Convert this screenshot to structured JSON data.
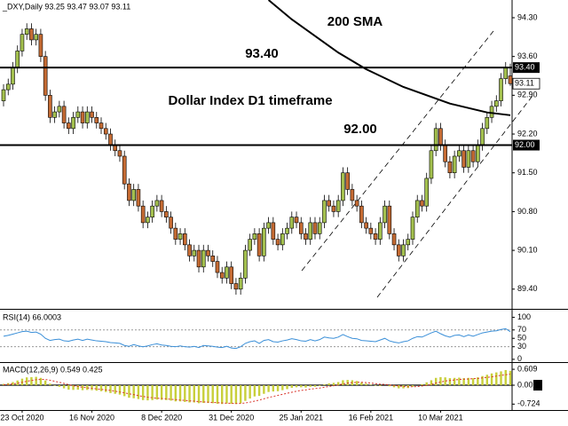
{
  "chart_data": [
    {
      "type": "candlestick",
      "title": "_DXY,Daily  93.25 93.47 93.07 93.11",
      "categories": [
        null,
        null,
        null,
        null,
        "23 Oct 2020",
        null,
        null,
        null,
        null,
        null,
        null,
        null,
        null,
        null,
        null,
        null,
        null,
        null,
        null,
        "16 Nov 2020",
        null,
        null,
        null,
        null,
        null,
        null,
        null,
        null,
        null,
        null,
        null,
        null,
        null,
        null,
        "8 Dec 2020",
        null,
        null,
        null,
        null,
        null,
        null,
        null,
        null,
        null,
        null,
        null,
        null,
        null,
        null,
        "31 Dec 2020",
        null,
        null,
        null,
        null,
        null,
        null,
        null,
        null,
        null,
        null,
        null,
        null,
        null,
        null,
        "25 Jan 2021",
        null,
        null,
        null,
        null,
        null,
        null,
        null,
        null,
        null,
        null,
        null,
        null,
        null,
        null,
        "16 Feb 2021",
        null,
        null,
        null,
        null,
        null,
        null,
        null,
        null,
        null,
        null,
        null,
        null,
        null,
        null,
        "10 Mar 2021",
        null,
        null,
        null,
        null,
        null,
        null,
        null,
        null,
        null,
        null,
        null,
        null,
        null,
        null,
        null
      ],
      "open": [
        92.8,
        93.0,
        93.1,
        93.4,
        93.7,
        94.0,
        94.1,
        93.9,
        94.0,
        93.6,
        92.9,
        92.5,
        92.6,
        92.7,
        92.4,
        92.3,
        92.5,
        92.6,
        92.4,
        92.6,
        92.5,
        92.4,
        92.3,
        92.2,
        92.0,
        91.9,
        91.8,
        91.3,
        91.0,
        91.2,
        90.9,
        90.6,
        90.7,
        90.9,
        91.0,
        90.8,
        90.7,
        90.5,
        90.3,
        90.4,
        90.2,
        90.0,
        90.1,
        89.8,
        90.1,
        90.0,
        89.9,
        89.7,
        89.6,
        89.8,
        89.5,
        89.4,
        89.6,
        90.1,
        90.3,
        90.4,
        90.0,
        90.5,
        90.6,
        90.3,
        90.2,
        90.4,
        90.5,
        90.7,
        90.6,
        90.4,
        90.3,
        90.6,
        90.4,
        90.6,
        91.0,
        90.9,
        90.8,
        91.0,
        91.5,
        91.2,
        91.0,
        90.9,
        90.6,
        90.5,
        90.4,
        90.3,
        90.6,
        90.9,
        90.4,
        90.2,
        90.0,
        90.2,
        90.3,
        90.7,
        91.0,
        90.9,
        91.4,
        91.9,
        92.3,
        92.0,
        91.7,
        91.5,
        91.8,
        91.9,
        91.6,
        91.9,
        91.7,
        92.0,
        92.3,
        92.5,
        92.7,
        92.8,
        93.2,
        93.25
      ],
      "high": [
        93.1,
        93.2,
        93.5,
        93.8,
        94.1,
        94.2,
        94.2,
        94.1,
        94.1,
        93.7,
        93.0,
        92.7,
        92.8,
        92.8,
        92.5,
        92.6,
        92.7,
        92.7,
        92.7,
        92.7,
        92.6,
        92.5,
        92.4,
        92.3,
        92.1,
        92.0,
        91.9,
        91.4,
        91.3,
        91.3,
        91.0,
        90.8,
        91.0,
        91.1,
        91.1,
        90.9,
        90.8,
        90.6,
        90.5,
        90.5,
        90.3,
        90.2,
        90.2,
        90.2,
        90.2,
        90.1,
        90.0,
        89.8,
        89.9,
        89.9,
        89.6,
        89.7,
        90.2,
        90.4,
        90.5,
        90.5,
        90.6,
        90.7,
        90.7,
        90.4,
        90.5,
        90.6,
        90.8,
        90.8,
        90.7,
        90.5,
        90.7,
        90.7,
        90.7,
        91.1,
        91.1,
        91.0,
        91.1,
        91.6,
        91.6,
        91.3,
        91.1,
        91.0,
        90.7,
        90.6,
        90.5,
        90.7,
        91.0,
        91.0,
        90.5,
        90.3,
        90.3,
        90.4,
        90.8,
        91.1,
        91.1,
        91.5,
        92.0,
        92.4,
        92.4,
        92.1,
        91.8,
        91.9,
        92.0,
        92.0,
        92.0,
        92.0,
        92.1,
        92.4,
        92.6,
        92.8,
        92.9,
        93.3,
        93.5,
        93.47
      ],
      "low": [
        92.7,
        92.9,
        93.0,
        93.3,
        93.6,
        93.9,
        93.8,
        93.8,
        93.5,
        92.8,
        92.4,
        92.4,
        92.5,
        92.3,
        92.2,
        92.2,
        92.4,
        92.3,
        92.3,
        92.4,
        92.3,
        92.2,
        92.1,
        91.9,
        91.8,
        91.7,
        91.2,
        90.9,
        90.9,
        90.8,
        90.5,
        90.5,
        90.6,
        90.8,
        90.7,
        90.6,
        90.4,
        90.2,
        90.2,
        90.1,
        89.9,
        89.9,
        89.7,
        89.7,
        89.9,
        89.8,
        89.6,
        89.5,
        89.5,
        89.4,
        89.3,
        89.3,
        89.5,
        90.0,
        90.2,
        89.9,
        89.9,
        90.4,
        90.2,
        90.1,
        90.1,
        90.3,
        90.4,
        90.5,
        90.3,
        90.2,
        90.2,
        90.3,
        90.3,
        90.5,
        90.8,
        90.7,
        90.7,
        90.9,
        91.1,
        90.9,
        90.8,
        90.5,
        90.4,
        90.3,
        90.2,
        90.2,
        90.5,
        90.3,
        90.1,
        89.9,
        89.9,
        90.1,
        90.2,
        90.6,
        90.8,
        90.8,
        91.3,
        91.8,
        91.9,
        91.6,
        91.4,
        91.4,
        91.7,
        91.5,
        91.5,
        91.6,
        91.6,
        91.9,
        92.2,
        92.4,
        92.6,
        92.7,
        93.1,
        93.07
      ],
      "close": [
        93.0,
        93.1,
        93.4,
        93.7,
        94.0,
        94.1,
        93.9,
        94.0,
        93.6,
        92.9,
        92.5,
        92.6,
        92.7,
        92.4,
        92.3,
        92.5,
        92.6,
        92.4,
        92.6,
        92.5,
        92.4,
        92.3,
        92.2,
        92.0,
        91.9,
        91.8,
        91.3,
        91.0,
        91.2,
        90.9,
        90.6,
        90.7,
        90.9,
        91.0,
        90.8,
        90.7,
        90.5,
        90.3,
        90.4,
        90.2,
        90.0,
        90.1,
        89.8,
        90.1,
        90.0,
        89.9,
        89.7,
        89.6,
        89.8,
        89.5,
        89.4,
        89.6,
        90.1,
        90.3,
        90.4,
        90.0,
        90.5,
        90.6,
        90.3,
        90.2,
        90.4,
        90.5,
        90.7,
        90.6,
        90.4,
        90.3,
        90.6,
        90.4,
        90.6,
        91.0,
        90.9,
        90.8,
        91.0,
        91.5,
        91.2,
        91.0,
        90.9,
        90.6,
        90.5,
        90.4,
        90.3,
        90.6,
        90.9,
        90.4,
        90.2,
        90.0,
        90.2,
        90.3,
        90.7,
        91.0,
        90.9,
        91.4,
        91.9,
        92.3,
        92.0,
        91.7,
        91.5,
        91.8,
        91.9,
        91.6,
        91.9,
        91.7,
        92.0,
        92.3,
        92.5,
        92.7,
        92.8,
        93.2,
        93.4,
        93.11
      ],
      "up_color": "#a3c04e",
      "down_color": "#c56b33",
      "ylim": [
        89.06,
        94.62
      ],
      "yticks": [
        {
          "value": 89.4,
          "label": "89.40"
        },
        {
          "value": 90.1,
          "label": "90.10"
        },
        {
          "value": 90.8,
          "label": "90.80"
        },
        {
          "value": 91.5,
          "label": "91.50"
        },
        {
          "value": 92.2,
          "label": "92.20"
        },
        {
          "value": 92.9,
          "label": "92.90"
        },
        {
          "value": 93.6,
          "label": "93.60"
        },
        {
          "value": 94.3,
          "label": "94.30"
        }
      ],
      "sma": {
        "name": "200 SMA",
        "color": "#000000",
        "values": [
          null,
          null,
          null,
          null,
          null,
          null,
          null,
          null,
          null,
          null,
          null,
          null,
          null,
          null,
          null,
          null,
          null,
          null,
          null,
          null,
          null,
          null,
          null,
          null,
          null,
          null,
          null,
          null,
          null,
          null,
          null,
          null,
          null,
          null,
          null,
          null,
          null,
          null,
          null,
          null,
          null,
          null,
          null,
          null,
          null,
          null,
          null,
          null,
          null,
          null,
          null,
          null,
          null,
          null,
          null,
          null,
          null,
          94.62,
          94.55,
          94.48,
          94.41,
          94.34,
          94.27,
          94.21,
          94.15,
          94.09,
          94.03,
          93.97,
          93.91,
          93.85,
          93.79,
          93.73,
          93.67,
          93.62,
          93.57,
          93.52,
          93.47,
          93.42,
          93.37,
          93.33,
          93.29,
          93.25,
          93.21,
          93.17,
          93.13,
          93.09,
          93.05,
          93.02,
          92.99,
          92.96,
          92.93,
          92.9,
          92.87,
          92.84,
          92.81,
          92.78,
          92.75,
          92.73,
          92.71,
          92.69,
          92.67,
          92.65,
          92.63,
          92.61,
          92.59,
          92.58,
          92.57,
          92.56,
          92.55,
          92.54
        ]
      },
      "levels": [
        {
          "value": 93.4,
          "label": "93.40"
        },
        {
          "value": 92.0,
          "label": "92.00"
        }
      ],
      "annotation": "Dollar Index D1 timeframe"
    },
    {
      "type": "line",
      "title": "RSI(14) 66.0003",
      "color": "#3a8fd8",
      "values": [
        55,
        57,
        60,
        63,
        66,
        67,
        64,
        65,
        60,
        50,
        45,
        47,
        48,
        44,
        43,
        46,
        48,
        45,
        48,
        46,
        44,
        43,
        42,
        40,
        39,
        38,
        33,
        31,
        35,
        32,
        30,
        32,
        35,
        37,
        34,
        33,
        31,
        30,
        32,
        30,
        29,
        31,
        28,
        33,
        32,
        31,
        29,
        28,
        31,
        27,
        26,
        30,
        38,
        42,
        44,
        38,
        45,
        47,
        42,
        41,
        44,
        46,
        49,
        47,
        44,
        43,
        47,
        44,
        47,
        53,
        51,
        50,
        53,
        59,
        54,
        50,
        49,
        45,
        44,
        43,
        42,
        46,
        50,
        44,
        41,
        39,
        42,
        44,
        50,
        54,
        53,
        58,
        63,
        67,
        61,
        56,
        53,
        57,
        58,
        54,
        58,
        55,
        59,
        63,
        65,
        67,
        68,
        71,
        73,
        66.0003
      ],
      "ylim": [
        -4.5,
        116
      ],
      "yticks": [
        0,
        30,
        50,
        70,
        100
      ],
      "guides": [
        30,
        70
      ]
    },
    {
      "type": "bar",
      "title": "MACD(12,26,9) 0.549 0.425",
      "color": "#c8cf3a",
      "values": [
        0.05,
        0.08,
        0.12,
        0.18,
        0.25,
        0.3,
        0.31,
        0.32,
        0.28,
        0.18,
        0.06,
        -0.02,
        -0.06,
        -0.12,
        -0.17,
        -0.18,
        -0.17,
        -0.19,
        -0.18,
        -0.19,
        -0.21,
        -0.23,
        -0.26,
        -0.3,
        -0.33,
        -0.36,
        -0.42,
        -0.48,
        -0.5,
        -0.53,
        -0.57,
        -0.58,
        -0.57,
        -0.55,
        -0.56,
        -0.57,
        -0.59,
        -0.62,
        -0.62,
        -0.64,
        -0.66,
        -0.66,
        -0.69,
        -0.68,
        -0.68,
        -0.69,
        -0.71,
        -0.72,
        -0.7,
        -0.71,
        -0.72,
        -0.69,
        -0.6,
        -0.51,
        -0.43,
        -0.41,
        -0.33,
        -0.26,
        -0.24,
        -0.23,
        -0.19,
        -0.15,
        -0.1,
        -0.08,
        -0.08,
        -0.09,
        -0.06,
        -0.06,
        -0.03,
        0.03,
        0.07,
        0.09,
        0.12,
        0.19,
        0.2,
        0.19,
        0.16,
        0.11,
        0.06,
        0.02,
        -0.02,
        -0.03,
        0.0,
        -0.04,
        -0.08,
        -0.12,
        -0.12,
        -0.11,
        -0.06,
        0.0,
        0.04,
        0.11,
        0.19,
        0.28,
        0.31,
        0.3,
        0.27,
        0.28,
        0.29,
        0.27,
        0.28,
        0.27,
        0.3,
        0.35,
        0.4,
        0.45,
        0.49,
        0.53,
        0.58,
        0.549
      ],
      "signal": [
        0.02,
        0.03,
        0.05,
        0.07,
        0.11,
        0.15,
        0.18,
        0.21,
        0.22,
        0.22,
        0.19,
        0.15,
        0.11,
        0.07,
        0.02,
        -0.02,
        -0.05,
        -0.08,
        -0.1,
        -0.12,
        -0.14,
        -0.16,
        -0.18,
        -0.2,
        -0.23,
        -0.26,
        -0.29,
        -0.33,
        -0.36,
        -0.4,
        -0.43,
        -0.46,
        -0.48,
        -0.5,
        -0.51,
        -0.52,
        -0.54,
        -0.55,
        -0.57,
        -0.58,
        -0.6,
        -0.61,
        -0.63,
        -0.64,
        -0.65,
        -0.66,
        -0.67,
        -0.68,
        -0.69,
        -0.69,
        -0.7,
        -0.7,
        -0.68,
        -0.65,
        -0.61,
        -0.57,
        -0.52,
        -0.47,
        -0.43,
        -0.39,
        -0.35,
        -0.31,
        -0.27,
        -0.23,
        -0.2,
        -0.18,
        -0.15,
        -0.13,
        -0.11,
        -0.08,
        -0.05,
        -0.02,
        0.01,
        0.05,
        0.08,
        0.1,
        0.11,
        0.11,
        0.1,
        0.08,
        0.06,
        0.04,
        0.03,
        0.01,
        -0.01,
        -0.03,
        -0.05,
        -0.06,
        -0.06,
        -0.05,
        -0.03,
        -0.01,
        0.03,
        0.08,
        0.12,
        0.16,
        0.18,
        0.2,
        0.22,
        0.23,
        0.24,
        0.25,
        0.26,
        0.28,
        0.3,
        0.32,
        0.35,
        0.38,
        0.4,
        0.425
      ],
      "signal_color": "#d9342b",
      "ylim": [
        -0.95,
        0.85
      ],
      "yticks": [
        0.609,
        {
          "value": 0,
          "label": "0.00"
        },
        -0.724
      ]
    }
  ]
}
